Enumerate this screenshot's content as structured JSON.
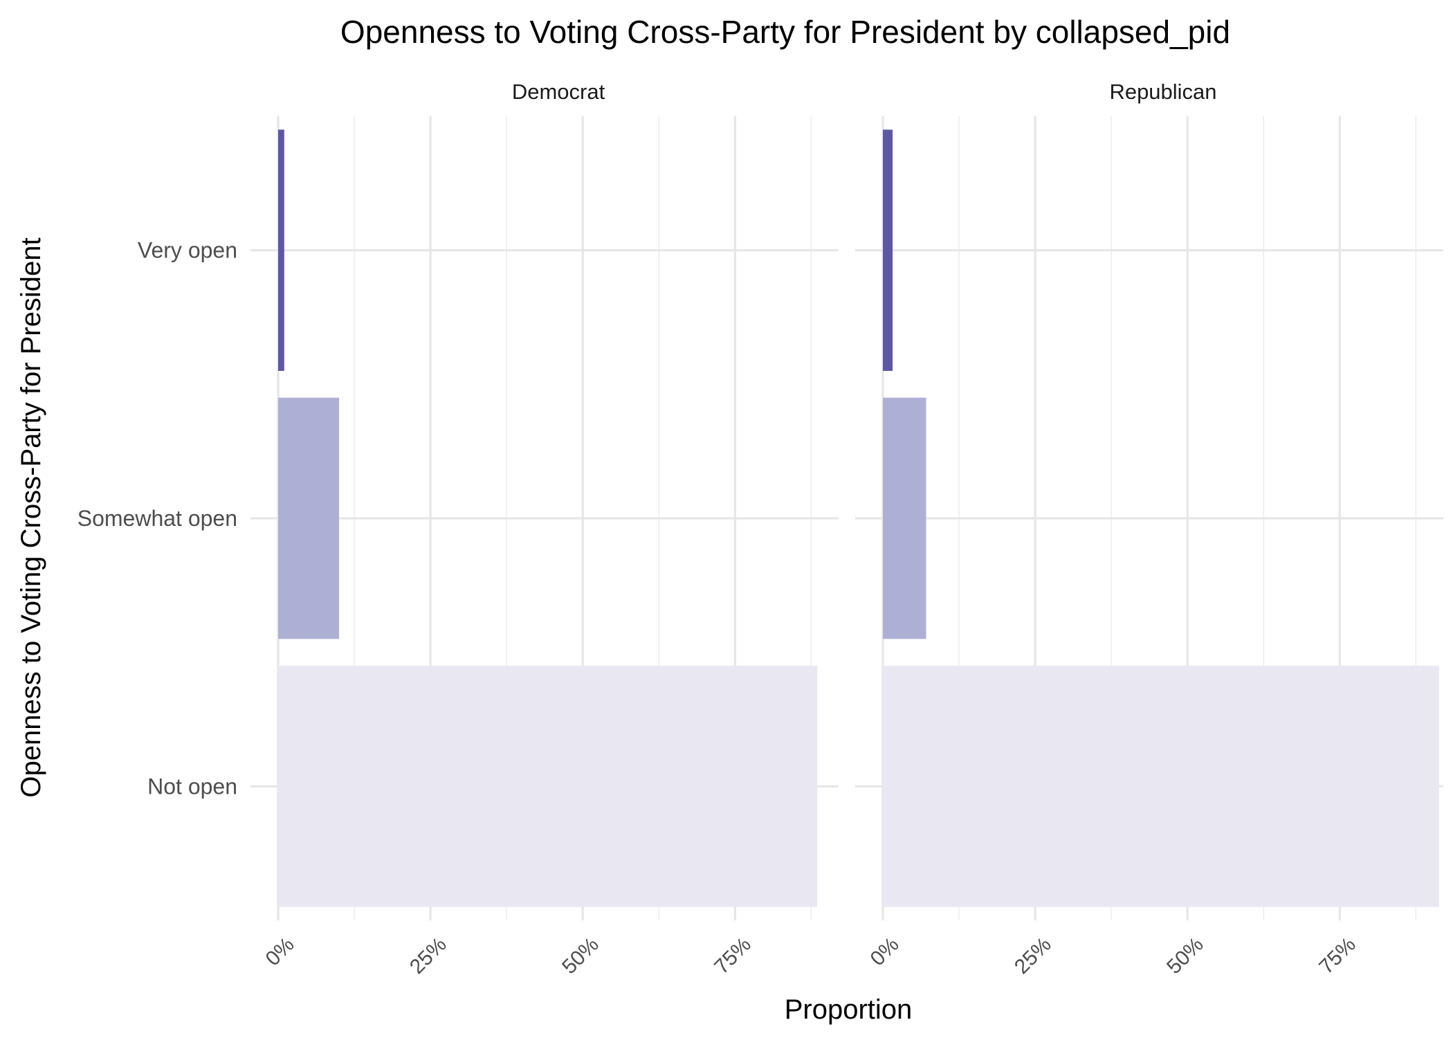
{
  "chart_data": {
    "type": "bar",
    "orientation": "horizontal",
    "title": "Openness to Voting Cross-Party for President by collapsed_pid",
    "xlabel": "Proportion",
    "ylabel": "Openness to Voting Cross-Party for President",
    "categories": [
      "Very open",
      "Somewhat open",
      "Not open"
    ],
    "xlim": [
      0,
      0.92
    ],
    "xticks": [
      0,
      0.25,
      0.5,
      0.75
    ],
    "xtick_labels": [
      "0%",
      "25%",
      "50%",
      "75%"
    ],
    "grid": true,
    "legend": "none",
    "colors": {
      "Very open": "#5e57a6",
      "Somewhat open": "#aeafd5",
      "Not open": "#e9e7f2"
    },
    "facets": [
      {
        "name": "Democrat",
        "values": [
          0.01,
          0.1,
          0.885
        ]
      },
      {
        "name": "Republican",
        "values": [
          0.016,
          0.071,
          0.913
        ]
      }
    ]
  }
}
